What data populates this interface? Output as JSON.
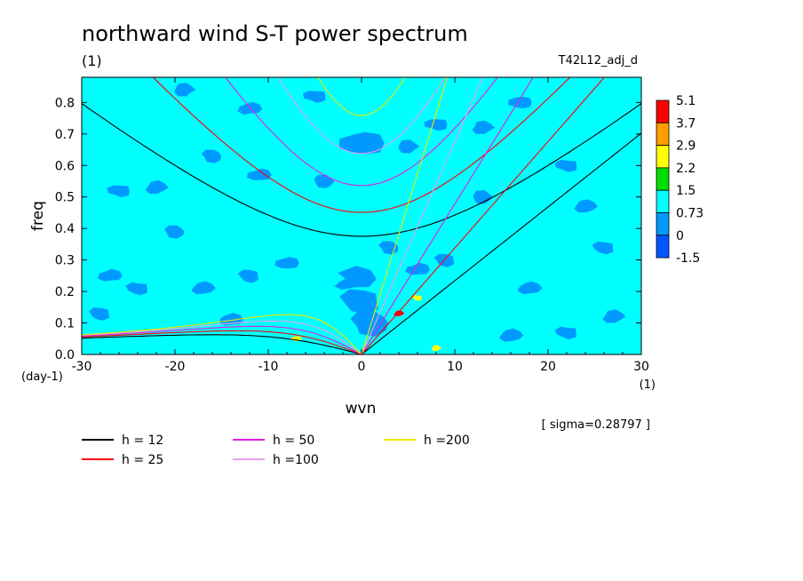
{
  "chart_data": {
    "type": "heatmap",
    "title": "northward wind S-T power spectrum",
    "subtitle_left": "(1)",
    "subtitle_right": "T42L12_adj_d",
    "xlabel": "wvn",
    "ylabel": "freq",
    "x_unit": "(1)",
    "y_unit": "(day-1)",
    "xlim": [
      -30,
      30
    ],
    "ylim": [
      0,
      0.88
    ],
    "x_ticks": [
      -30,
      -20,
      -10,
      0,
      10,
      20,
      30
    ],
    "y_ticks": [
      0.0,
      0.1,
      0.2,
      0.3,
      0.4,
      0.5,
      0.6,
      0.7,
      0.8
    ],
    "x_tick_labels": [
      "-30",
      "-20",
      "-10",
      "0",
      "10",
      "20",
      "30"
    ],
    "y_tick_labels": [
      "0.0",
      "0.1",
      "0.2",
      "0.3",
      "0.4",
      "0.5",
      "0.6",
      "0.7",
      "0.8"
    ],
    "sigma_note": "[ sigma=0.28797 ]",
    "colorbar": {
      "labels": [
        "5.1",
        "3.7",
        "2.9",
        "2.2",
        "1.5",
        "0.73",
        "0",
        "-1.5"
      ],
      "colors": [
        "#ff0000",
        "#ffa000",
        "#ffff00",
        "#00dd00",
        "#00ffff",
        "#0099ff",
        "#0055ff"
      ]
    },
    "background_color": "#00ffff",
    "blobs": [
      {
        "x": 0,
        "y": 0.17,
        "level": "0.73"
      },
      {
        "x": -1,
        "y": 0.24,
        "level": "0.73"
      },
      {
        "x": 1,
        "y": 0.1,
        "level": "0.73"
      },
      {
        "x": -6,
        "y": 0.16,
        "level": "1.5"
      },
      {
        "x": -7,
        "y": 0.06,
        "level": "1.5"
      },
      {
        "x": -7,
        "y": 0.05,
        "level": "2.9"
      },
      {
        "x": -5,
        "y": 0.11,
        "level": "1.5"
      },
      {
        "x": 7,
        "y": 0.04,
        "level": "1.5"
      },
      {
        "x": 8,
        "y": 0.02,
        "level": "2.9"
      },
      {
        "x": 4,
        "y": 0.13,
        "level": "1.5"
      },
      {
        "x": 4,
        "y": 0.13,
        "level": "5.1"
      },
      {
        "x": 6,
        "y": 0.18,
        "level": "2.9"
      },
      {
        "x": 11,
        "y": 0.12,
        "level": "1.5"
      },
      {
        "x": -2,
        "y": 0.45,
        "level": "1.5"
      },
      {
        "x": -2,
        "y": 0.42,
        "level": "1.5"
      },
      {
        "x": 2,
        "y": 0.6,
        "level": "1.5"
      },
      {
        "x": -4,
        "y": 0.72,
        "level": "1.5"
      },
      {
        "x": 1,
        "y": 0.74,
        "level": "1.5"
      },
      {
        "x": -6,
        "y": 0.66,
        "level": "1.5"
      },
      {
        "x": -3,
        "y": 0.24,
        "level": "1.5"
      },
      {
        "x": -26,
        "y": 0.52,
        "level": "0.73"
      },
      {
        "x": -22,
        "y": 0.53,
        "level": "0.73"
      },
      {
        "x": -24,
        "y": 0.21,
        "level": "0.73"
      },
      {
        "x": -17,
        "y": 0.21,
        "level": "0.73"
      },
      {
        "x": -12,
        "y": 0.25,
        "level": "0.73"
      },
      {
        "x": -12,
        "y": 0.78,
        "level": "0.73"
      },
      {
        "x": -16,
        "y": 0.63,
        "level": "0.73"
      },
      {
        "x": -11,
        "y": 0.57,
        "level": "0.73"
      },
      {
        "x": -4,
        "y": 0.55,
        "level": "0.73"
      },
      {
        "x": 0,
        "y": 0.67,
        "level": "0.73"
      },
      {
        "x": 5,
        "y": 0.66,
        "level": "0.73"
      },
      {
        "x": 8,
        "y": 0.73,
        "level": "0.73"
      },
      {
        "x": 13,
        "y": 0.72,
        "level": "0.73"
      },
      {
        "x": 22,
        "y": 0.6,
        "level": "0.73"
      },
      {
        "x": 24,
        "y": 0.47,
        "level": "0.73"
      },
      {
        "x": 26,
        "y": 0.34,
        "level": "0.73"
      },
      {
        "x": 18,
        "y": 0.21,
        "level": "0.73"
      },
      {
        "x": 9,
        "y": 0.3,
        "level": "0.73"
      },
      {
        "x": -27,
        "y": 0.25,
        "level": "0.73"
      },
      {
        "x": -20,
        "y": 0.39,
        "level": "0.73"
      },
      {
        "x": -8,
        "y": 0.29,
        "level": "0.73"
      },
      {
        "x": 13,
        "y": 0.5,
        "level": "0.73"
      },
      {
        "x": 17,
        "y": 0.8,
        "level": "0.73"
      },
      {
        "x": -19,
        "y": 0.84,
        "level": "0.73"
      },
      {
        "x": -5,
        "y": 0.82,
        "level": "0.73"
      },
      {
        "x": 27,
        "y": 0.12,
        "level": "0.73"
      },
      {
        "x": 22,
        "y": 0.07,
        "level": "0.73"
      },
      {
        "x": 16,
        "y": 0.06,
        "level": "0.73"
      },
      {
        "x": -28,
        "y": 0.13,
        "level": "0.73"
      },
      {
        "x": -14,
        "y": 0.11,
        "level": "0.73"
      },
      {
        "x": 3,
        "y": 0.34,
        "level": "0.73"
      },
      {
        "x": 6,
        "y": 0.27,
        "level": "0.73"
      }
    ],
    "series": [
      {
        "name": "h = 12",
        "h": 12,
        "color": "#000000"
      },
      {
        "name": "h = 25",
        "h": 25,
        "color": "#ff0000"
      },
      {
        "name": "h = 50",
        "h": 50,
        "color": "#e020e0"
      },
      {
        "name": "h =100",
        "h": 100,
        "color": "#e8a0e8"
      },
      {
        "name": "h =200",
        "h": 200,
        "color": "#e8e800"
      }
    ]
  }
}
